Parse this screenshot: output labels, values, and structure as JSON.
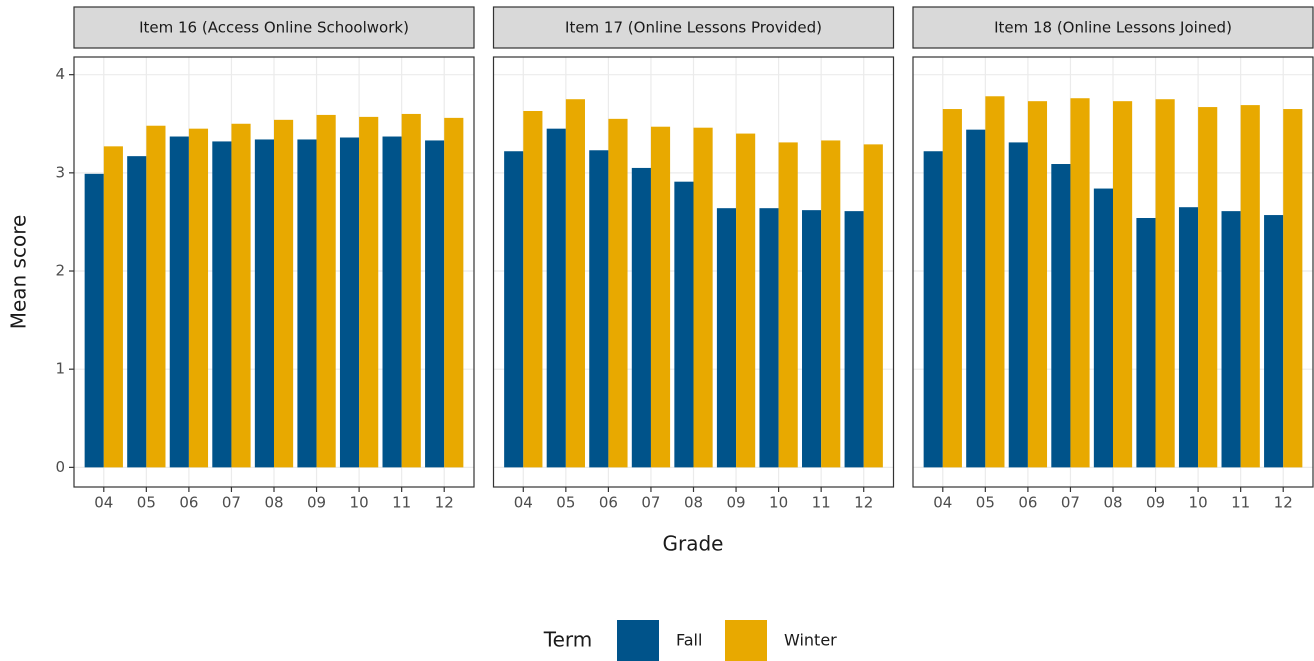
{
  "axis_labels": {
    "x": "Grade",
    "y": "Mean score"
  },
  "legend": {
    "title": "Term"
  },
  "chart_data": [
    {
      "type": "bar",
      "title": "Item 16 (Access Online Schoolwork)",
      "categories": [
        "04",
        "05",
        "06",
        "07",
        "08",
        "09",
        "10",
        "11",
        "12"
      ],
      "series": [
        {
          "name": "Fall",
          "color": "#00538a",
          "values": [
            2.99,
            3.17,
            3.37,
            3.32,
            3.34,
            3.34,
            3.36,
            3.37,
            3.33
          ]
        },
        {
          "name": "Winter",
          "color": "#e8a900",
          "values": [
            3.27,
            3.48,
            3.45,
            3.5,
            3.54,
            3.59,
            3.57,
            3.6,
            3.56
          ]
        }
      ],
      "ylim": [
        -0.2,
        4.18
      ],
      "yticks": [
        0,
        1,
        2,
        3,
        4
      ],
      "grid": true
    },
    {
      "type": "bar",
      "title": "Item 17 (Online Lessons Provided)",
      "categories": [
        "04",
        "05",
        "06",
        "07",
        "08",
        "09",
        "10",
        "11",
        "12"
      ],
      "series": [
        {
          "name": "Fall",
          "color": "#00538a",
          "values": [
            3.22,
            3.45,
            3.23,
            3.05,
            2.91,
            2.64,
            2.64,
            2.62,
            2.61
          ]
        },
        {
          "name": "Winter",
          "color": "#e8a900",
          "values": [
            3.63,
            3.75,
            3.55,
            3.47,
            3.46,
            3.4,
            3.31,
            3.33,
            3.29
          ]
        }
      ],
      "ylim": [
        -0.2,
        4.18
      ],
      "yticks": [
        0,
        1,
        2,
        3,
        4
      ],
      "grid": true
    },
    {
      "type": "bar",
      "title": "Item 18 (Online Lessons Joined)",
      "categories": [
        "04",
        "05",
        "06",
        "07",
        "08",
        "09",
        "10",
        "11",
        "12"
      ],
      "series": [
        {
          "name": "Fall",
          "color": "#00538a",
          "values": [
            3.22,
            3.44,
            3.31,
            3.09,
            2.84,
            2.54,
            2.65,
            2.61,
            2.57
          ]
        },
        {
          "name": "Winter",
          "color": "#e8a900",
          "values": [
            3.65,
            3.78,
            3.73,
            3.76,
            3.73,
            3.75,
            3.67,
            3.69,
            3.65
          ]
        }
      ],
      "ylim": [
        -0.2,
        4.18
      ],
      "yticks": [
        0,
        1,
        2,
        3,
        4
      ],
      "grid": true
    }
  ]
}
